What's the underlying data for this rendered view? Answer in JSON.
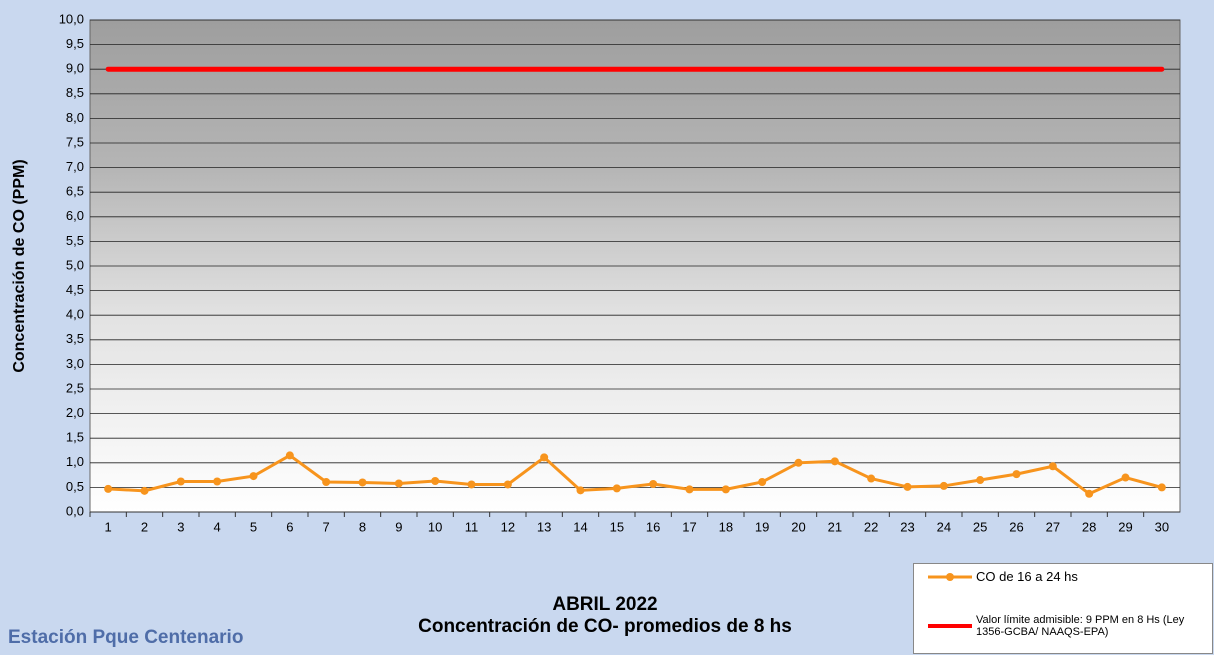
{
  "chart_data": {
    "type": "line",
    "title": "ABRIL 2022",
    "subtitle": "Concentración de CO- promedios de 8 hs",
    "y_label": "Concentración de CO (PPM)",
    "annotation": "Estación Pque Centenario",
    "categories": [
      "1",
      "2",
      "3",
      "4",
      "5",
      "6",
      "7",
      "8",
      "9",
      "10",
      "11",
      "12",
      "13",
      "14",
      "15",
      "16",
      "17",
      "18",
      "19",
      "20",
      "21",
      "22",
      "23",
      "24",
      "25",
      "26",
      "27",
      "28",
      "29",
      "30"
    ],
    "series": [
      {
        "name": "CO de 16 a 24 hs",
        "color": "#f7941d",
        "marker": true,
        "values": [
          0.47,
          0.43,
          0.62,
          0.62,
          0.73,
          1.15,
          0.61,
          0.6,
          0.58,
          0.63,
          0.56,
          0.56,
          1.11,
          0.44,
          0.48,
          0.57,
          0.46,
          0.46,
          0.61,
          1.0,
          1.03,
          0.68,
          0.51,
          0.53,
          0.65,
          0.77,
          0.93,
          0.37,
          0.7,
          0.5
        ]
      },
      {
        "name": "Valor límite admisible: 9 PPM en 8 Hs (Ley 1356-GCBA/ NAAQS-EPA)",
        "color": "#ff0000",
        "marker": false,
        "values": [
          9,
          9,
          9,
          9,
          9,
          9,
          9,
          9,
          9,
          9,
          9,
          9,
          9,
          9,
          9,
          9,
          9,
          9,
          9,
          9,
          9,
          9,
          9,
          9,
          9,
          9,
          9,
          9,
          9,
          9
        ]
      }
    ],
    "ylim": [
      0,
      10
    ],
    "yticks": [
      {
        "value": 0,
        "label": "0,0"
      },
      {
        "value": 0.5,
        "label": "0,5"
      },
      {
        "value": 1,
        "label": "1,0"
      },
      {
        "value": 1.5,
        "label": "1,5"
      },
      {
        "value": 2,
        "label": "2,0"
      },
      {
        "value": 2.5,
        "label": "2,5"
      },
      {
        "value": 3,
        "label": "3,0"
      },
      {
        "value": 3.5,
        "label": "3,5"
      },
      {
        "value": 4,
        "label": "4,0"
      },
      {
        "value": 4.5,
        "label": "4,5"
      },
      {
        "value": 5,
        "label": "5,0"
      },
      {
        "value": 5.5,
        "label": "5,5"
      },
      {
        "value": 6,
        "label": "6,0"
      },
      {
        "value": 6.5,
        "label": "6,5"
      },
      {
        "value": 7,
        "label": "7,0"
      },
      {
        "value": 7.5,
        "label": "7,5"
      },
      {
        "value": 8,
        "label": "8,0"
      },
      {
        "value": 8.5,
        "label": "8,5"
      },
      {
        "value": 9,
        "label": "9,0"
      },
      {
        "value": 9.5,
        "label": "9,5"
      },
      {
        "value": 10,
        "label": "10,0"
      }
    ],
    "grid": true
  }
}
